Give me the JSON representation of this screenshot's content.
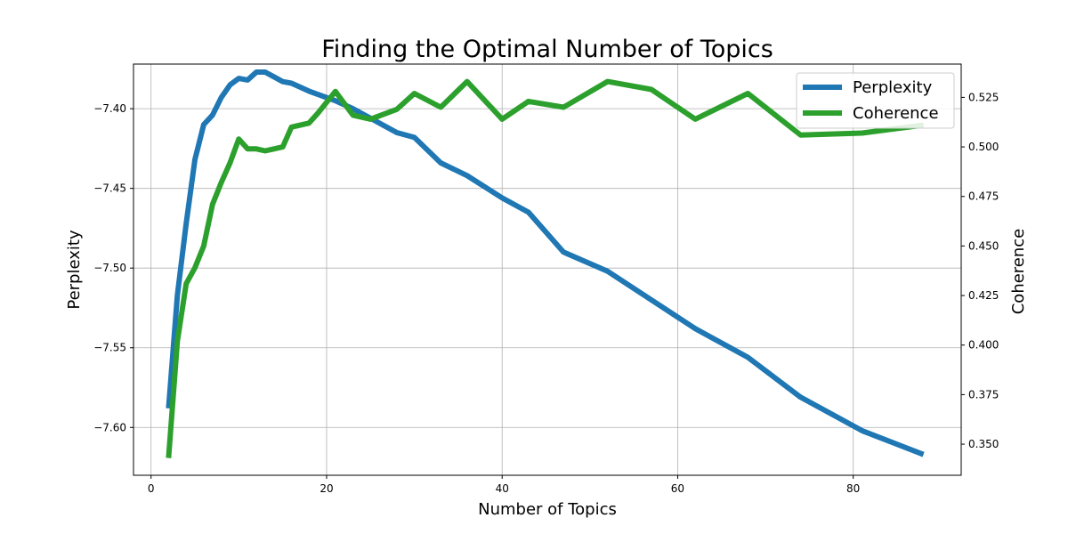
{
  "chart_data": {
    "type": "line",
    "title": "Finding the Optimal Number of Topics",
    "xlabel": "Number of Topics",
    "ylabel": "Perplexity",
    "y2label": "Coherence",
    "xlim": [
      -2,
      92.3
    ],
    "ylim": [
      -7.63,
      -7.372
    ],
    "y2lim": [
      0.3343,
      0.5418
    ],
    "xticks": [
      0,
      20,
      40,
      60,
      80
    ],
    "yticks": [
      -7.6,
      -7.55,
      -7.5,
      -7.45,
      -7.4
    ],
    "ytick_labels": [
      "−7.60",
      "−7.55",
      "−7.50",
      "−7.45",
      "−7.40"
    ],
    "y2ticks": [
      0.35,
      0.375,
      0.4,
      0.425,
      0.45,
      0.475,
      0.5,
      0.525
    ],
    "y2tick_labels": [
      "0.350",
      "0.375",
      "0.400",
      "0.425",
      "0.450",
      "0.475",
      "0.500",
      "0.525"
    ],
    "grid": true,
    "legend_position": "top-right",
    "series": [
      {
        "name": "Perplexity",
        "axis": "left",
        "color": "#1f77b4",
        "x": [
          2,
          3,
          4,
          5,
          6,
          7,
          8,
          9,
          10,
          11,
          12,
          13,
          14,
          15,
          16,
          18,
          21,
          23,
          25,
          28,
          30,
          33,
          36,
          40,
          43,
          47,
          52,
          57,
          62,
          68,
          74,
          81,
          88
        ],
        "y": [
          -7.588,
          -7.517,
          -7.472,
          -7.432,
          -7.41,
          -7.404,
          -7.393,
          -7.385,
          -7.381,
          -7.382,
          -7.377,
          -7.377,
          -7.38,
          -7.383,
          -7.384,
          -7.389,
          -7.395,
          -7.4,
          -7.406,
          -7.415,
          -7.418,
          -7.434,
          -7.442,
          -7.456,
          -7.465,
          -7.49,
          -7.502,
          -7.52,
          -7.538,
          -7.556,
          -7.581,
          -7.602,
          -7.617
        ]
      },
      {
        "name": "Coherence",
        "axis": "right",
        "color": "#2ca02c",
        "x": [
          2,
          3,
          4,
          5,
          6,
          7,
          8,
          9,
          10,
          11,
          12,
          13,
          14,
          15,
          16,
          18,
          19,
          21,
          23,
          25,
          28,
          30,
          33,
          36,
          40,
          43,
          47,
          52,
          57,
          62,
          68,
          74,
          81,
          88
        ],
        "y": [
          0.343,
          0.402,
          0.431,
          0.439,
          0.45,
          0.471,
          0.482,
          0.492,
          0.504,
          0.499,
          0.499,
          0.498,
          0.499,
          0.5,
          0.51,
          0.512,
          0.517,
          0.528,
          0.516,
          0.514,
          0.519,
          0.527,
          0.52,
          0.533,
          0.514,
          0.523,
          0.52,
          0.533,
          0.529,
          0.514,
          0.527,
          0.506,
          0.507,
          0.511
        ]
      }
    ]
  }
}
